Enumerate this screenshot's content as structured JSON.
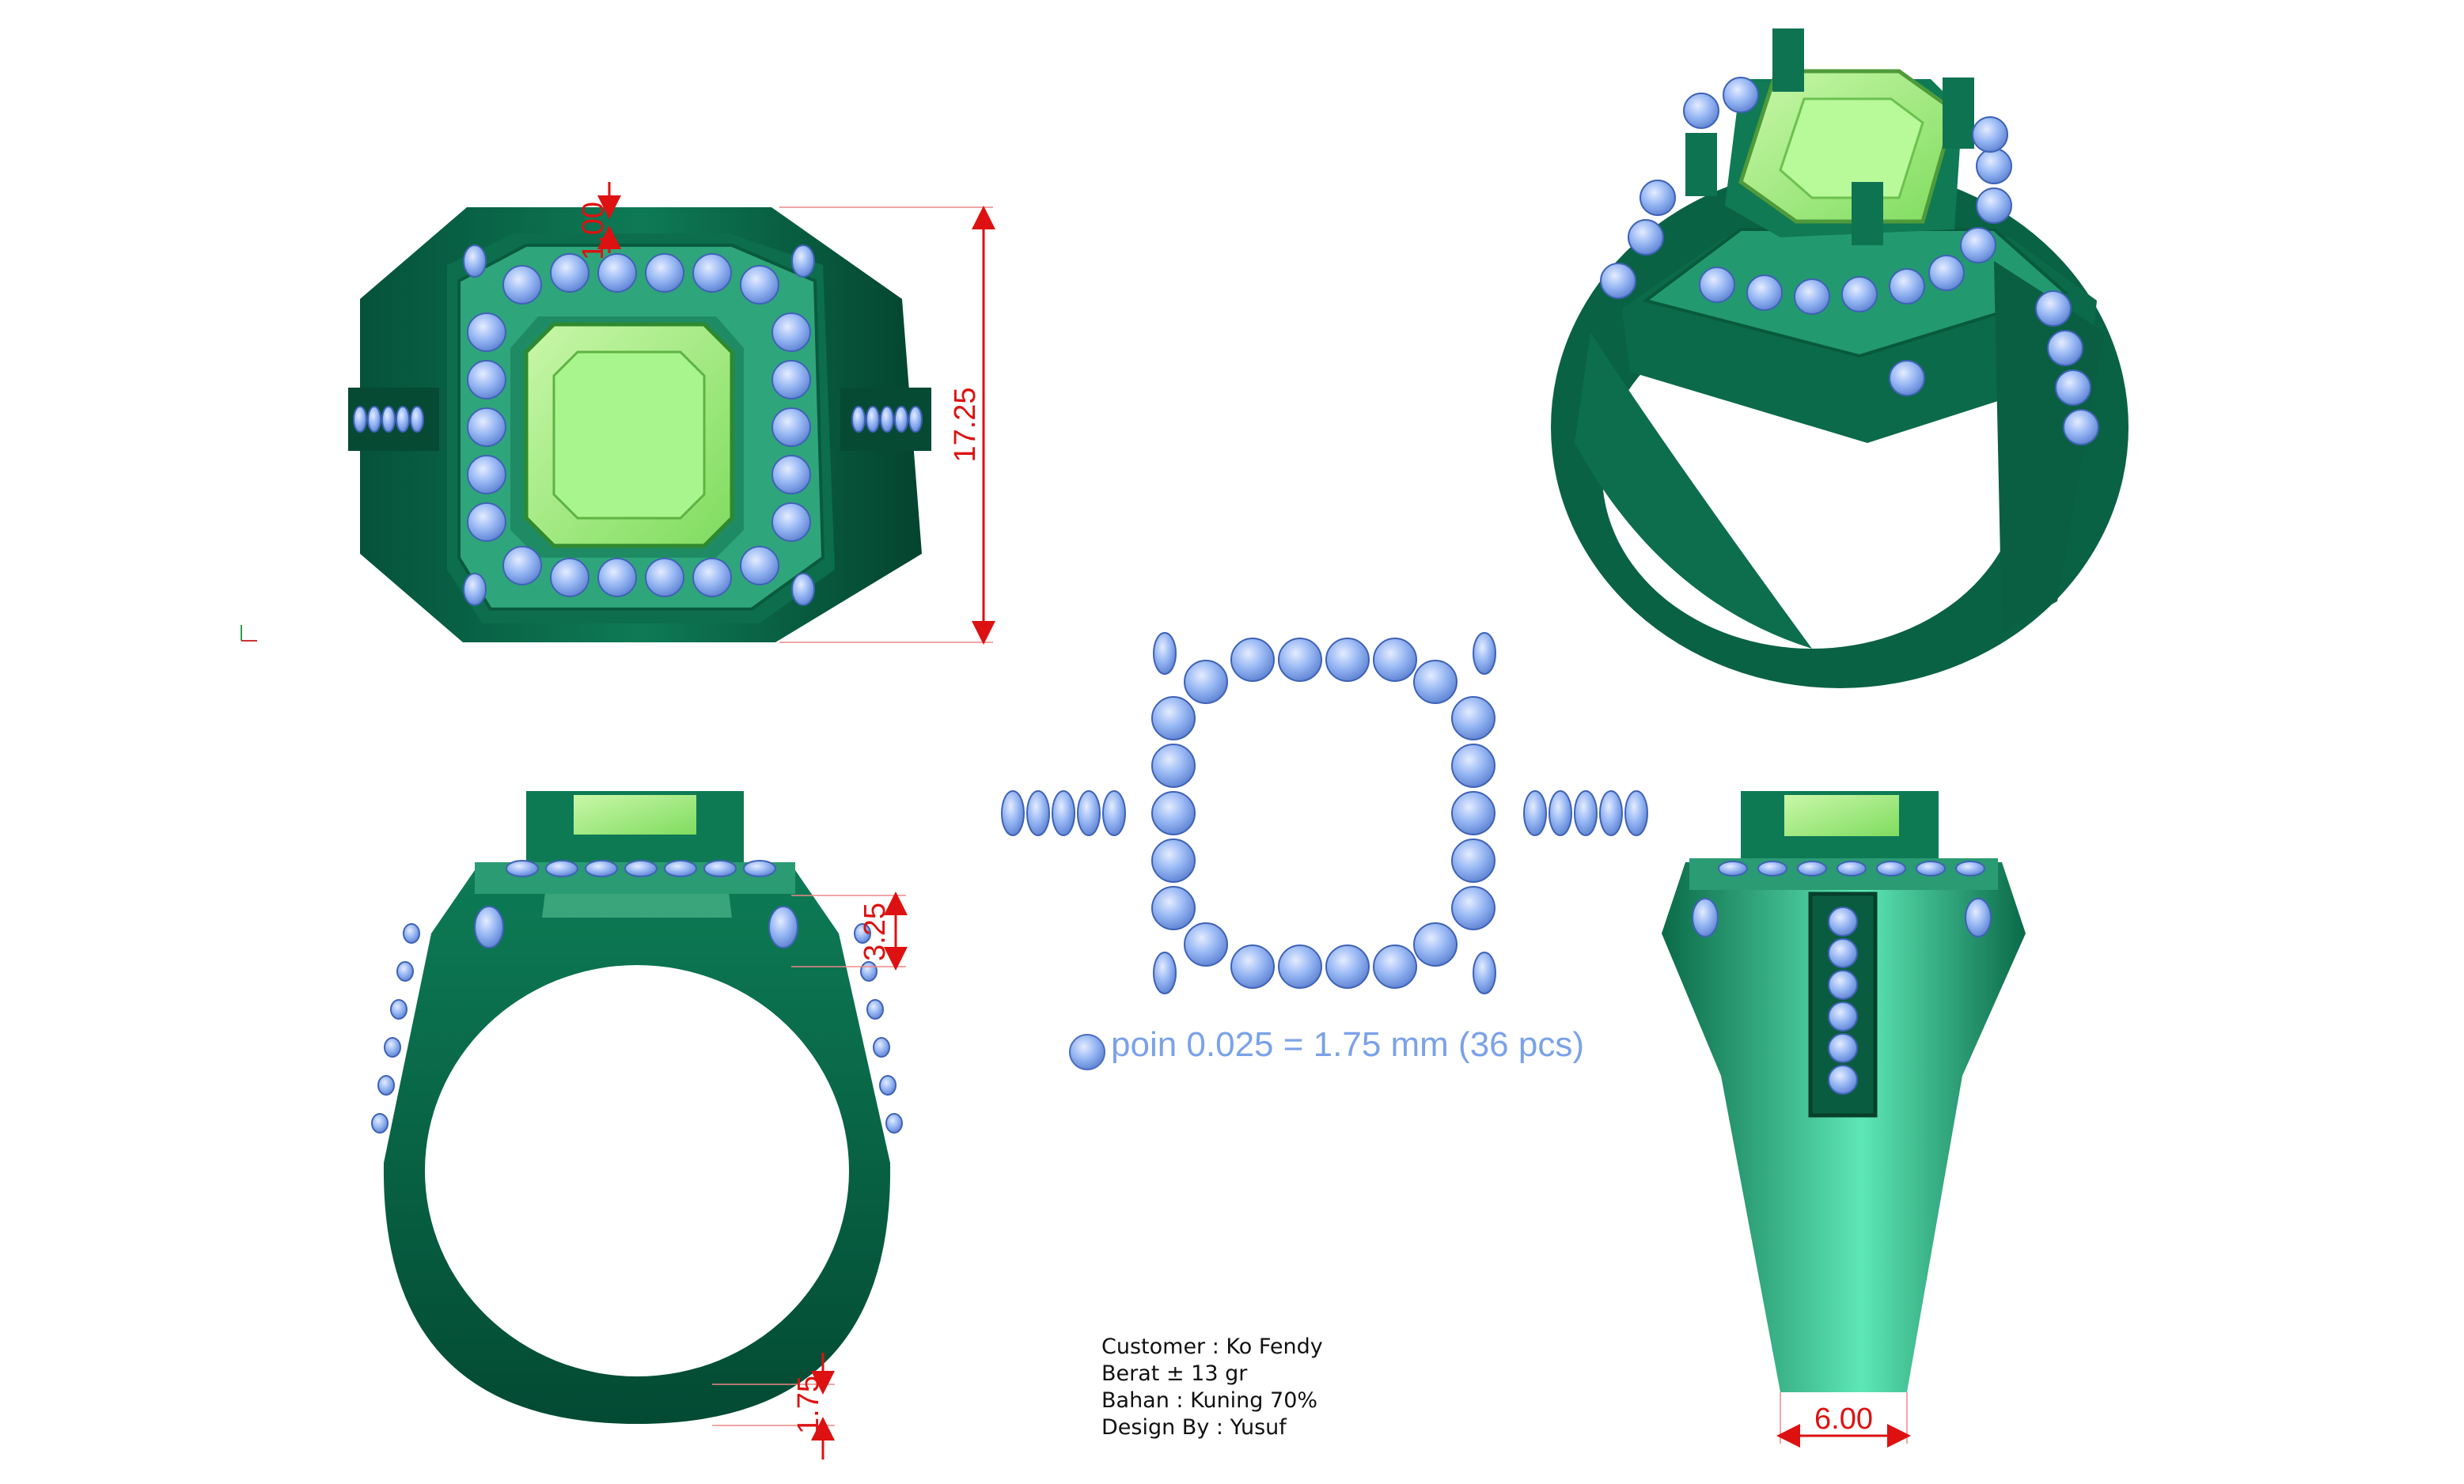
{
  "dimensions": {
    "top_prong": "1.00",
    "top_height": "17.25",
    "side_shoulder": "3.25",
    "side_band": "1.75",
    "band_width": "6.00"
  },
  "legend": {
    "text": "poin 0.025 = 1.75 mm (36 pcs)"
  },
  "info": {
    "customer": "Customer : Ko Fendy",
    "weight": "Berat ± 13 gr",
    "material": "Bahan : Kuning 70%",
    "designer": "Design By : Yusuf"
  },
  "colors": {
    "metal": "#0b6b4a",
    "metal_light": "#3fc79a",
    "gem_center": "#a8f08a",
    "stone": "#8fb4f2",
    "dimension": "#dd1111",
    "legend_text": "#7aa2e8"
  }
}
